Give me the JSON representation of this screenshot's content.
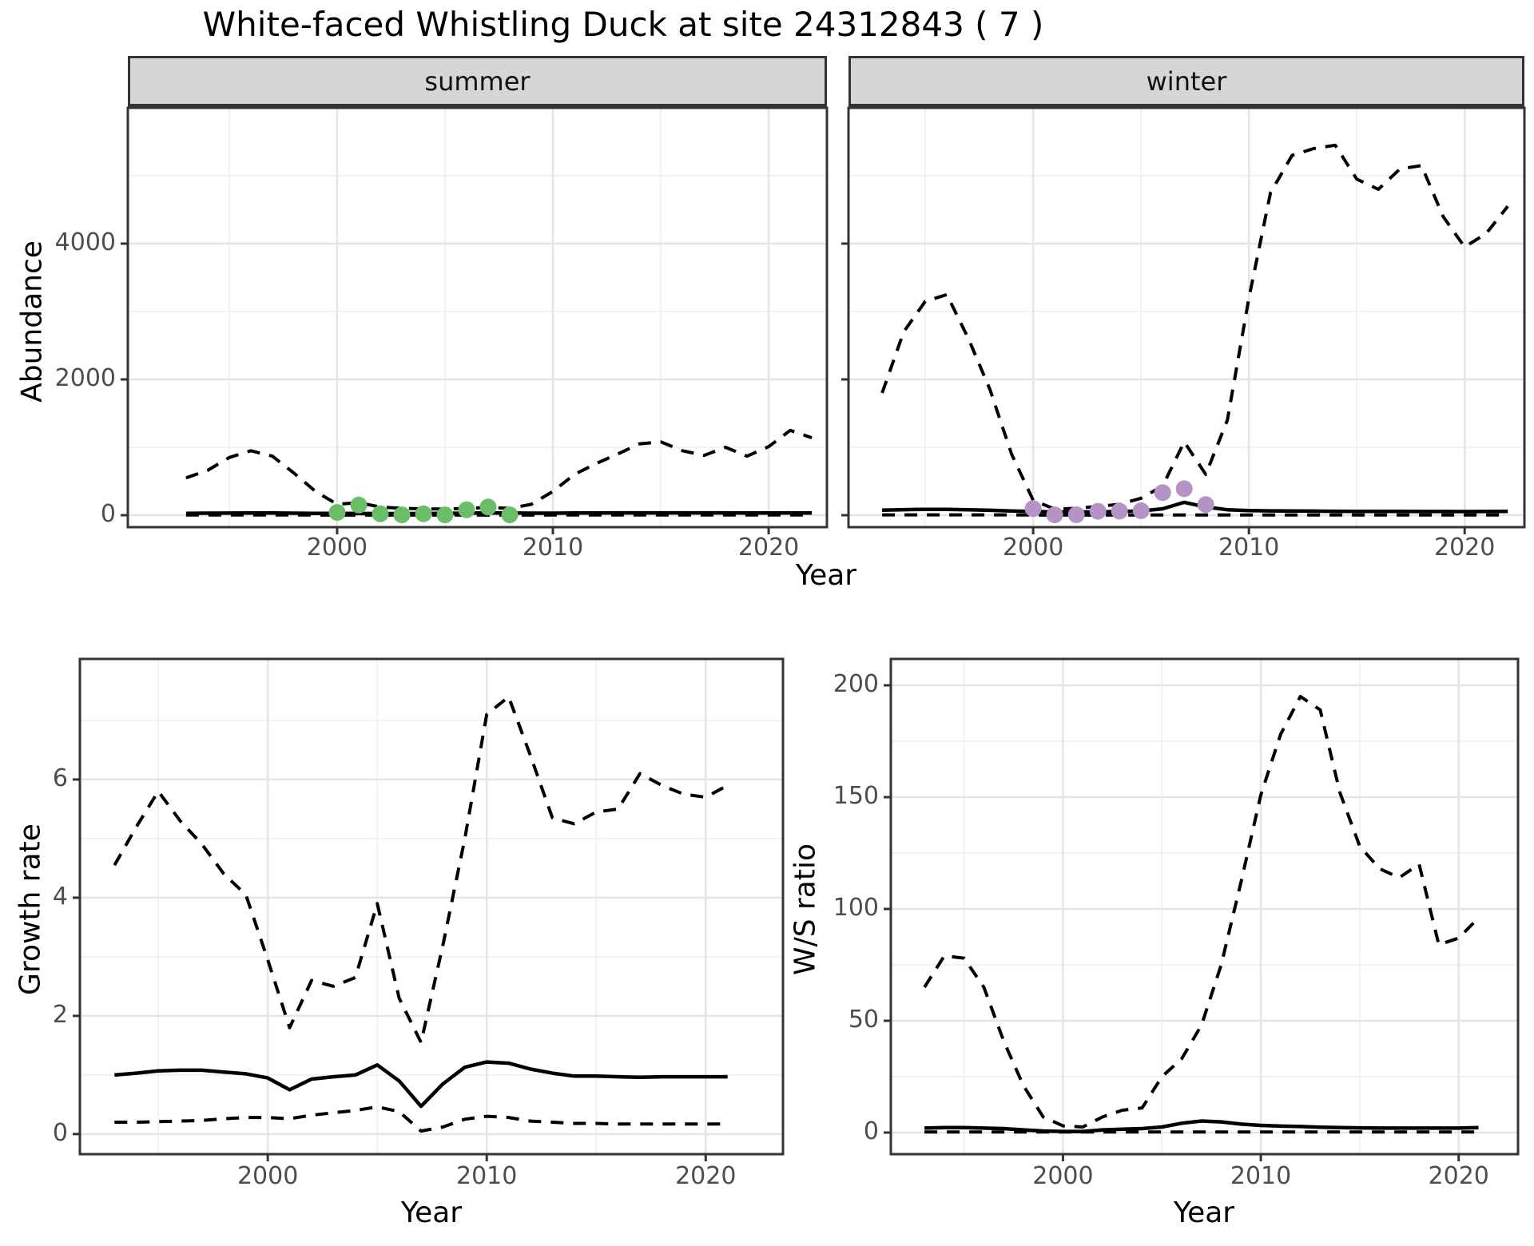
{
  "title": "White-faced Whistling Duck at site 24312843 ( 7 )",
  "colors": {
    "summer_points": "#6abe68",
    "winter_points": "#b593c6",
    "line": "#000000",
    "strip_bg": "#d6d6d6",
    "grid_major": "#e5e5e5",
    "grid_minor": "#f2f2f2",
    "panel_border": "#333333",
    "tick_text": "#4d4d4d"
  },
  "chart_data": [
    {
      "id": "abundance-summer",
      "type": "line",
      "facet_label": "summer",
      "ylabel": "Abundance",
      "xlabel": "Year",
      "legend": "none",
      "grid": "on",
      "xlim": [
        1990.3,
        2022.7
      ],
      "ylim": [
        -176,
        6000
      ],
      "x_ticks": [
        {
          "v": 2000,
          "label": "2000"
        },
        {
          "v": 2010,
          "label": "2010"
        },
        {
          "v": 2020,
          "label": "2020"
        }
      ],
      "x_minor": [
        1995,
        2005,
        2015
      ],
      "y_ticks": [
        {
          "v": 0,
          "label": "0"
        },
        {
          "v": 2000,
          "label": "2000"
        },
        {
          "v": 4000,
          "label": "4000"
        }
      ],
      "y_minor": [
        1000,
        3000,
        5000
      ],
      "years": [
        1993,
        1994,
        1995,
        1996,
        1997,
        1998,
        1999,
        2000,
        2001,
        2002,
        2003,
        2004,
        2005,
        2006,
        2007,
        2008,
        2009,
        2010,
        2011,
        2012,
        2013,
        2014,
        2015,
        2016,
        2017,
        2018,
        2019,
        2020,
        2021,
        2022
      ],
      "series": [
        {
          "name": "upper_95ci",
          "style": "dashed",
          "values": [
            550,
            660,
            850,
            950,
            870,
            620,
            350,
            160,
            185,
            120,
            100,
            95,
            90,
            100,
            115,
            100,
            160,
            350,
            600,
            760,
            900,
            1050,
            1080,
            950,
            880,
            1000,
            870,
            1010,
            1250,
            1140
          ]
        },
        {
          "name": "median",
          "style": "solid",
          "values": [
            28,
            30,
            31,
            32,
            32,
            30,
            28,
            26,
            25,
            24,
            24,
            25,
            26,
            30,
            34,
            32,
            30,
            30,
            32,
            33,
            34,
            35,
            35,
            34,
            34,
            34,
            33,
            33,
            34,
            33
          ]
        },
        {
          "name": "lower_95ci",
          "style": "dashed",
          "values": [
            3,
            3,
            3,
            3,
            3,
            3,
            3,
            2,
            2,
            2,
            2,
            2,
            2,
            2,
            2,
            2,
            2,
            3,
            3,
            3,
            3,
            3,
            3,
            3,
            3,
            3,
            3,
            3,
            3,
            3
          ]
        }
      ],
      "points": {
        "name": "observed-counts-summer",
        "color_key": "summer_points",
        "years": [
          2000,
          2001,
          2002,
          2003,
          2004,
          2005,
          2006,
          2007,
          2008
        ],
        "values": [
          40,
          150,
          20,
          5,
          20,
          5,
          80,
          120,
          5
        ]
      }
    },
    {
      "id": "abundance-winter",
      "type": "line",
      "facet_label": "winter",
      "ylabel": "Abundance",
      "xlabel": "Year",
      "legend": "none",
      "grid": "on",
      "xlim": [
        1991.44,
        2022.77
      ],
      "ylim": [
        -176,
        6000
      ],
      "x_ticks": [
        {
          "v": 2000,
          "label": "2000"
        },
        {
          "v": 2010,
          "label": "2010"
        },
        {
          "v": 2020,
          "label": "2020"
        }
      ],
      "x_minor": [
        1995,
        2005,
        2015
      ],
      "y_ticks": [
        {
          "v": 0,
          "label": "0"
        },
        {
          "v": 2000,
          "label": "2000"
        },
        {
          "v": 4000,
          "label": "4000"
        }
      ],
      "y_minor": [
        1000,
        3000,
        5000
      ],
      "years": [
        1993,
        1994,
        1995,
        1996,
        1997,
        1998,
        1999,
        2000,
        2001,
        2002,
        2003,
        2004,
        2005,
        2006,
        2007,
        2008,
        2009,
        2010,
        2011,
        2012,
        2013,
        2014,
        2015,
        2016,
        2017,
        2018,
        2019,
        2020,
        2021,
        2022
      ],
      "series": [
        {
          "name": "upper_95ci",
          "style": "dashed",
          "values": [
            1800,
            2700,
            3150,
            3250,
            2600,
            1850,
            900,
            220,
            90,
            100,
            130,
            160,
            250,
            430,
            1080,
            600,
            1400,
            3200,
            4750,
            5300,
            5400,
            5450,
            4950,
            4800,
            5100,
            5150,
            4400,
            3950,
            4150,
            4550
          ]
        },
        {
          "name": "median",
          "style": "solid",
          "values": [
            75,
            82,
            86,
            86,
            80,
            72,
            62,
            55,
            48,
            46,
            50,
            55,
            62,
            95,
            190,
            120,
            80,
            68,
            64,
            62,
            60,
            58,
            57,
            56,
            56,
            55,
            54,
            53,
            55,
            56
          ]
        },
        {
          "name": "lower_95ci",
          "style": "dashed",
          "values": [
            5,
            5,
            5,
            5,
            5,
            5,
            4,
            3,
            2,
            2,
            2,
            2,
            3,
            3,
            4,
            3,
            3,
            4,
            4,
            4,
            4,
            4,
            4,
            4,
            4,
            4,
            4,
            4,
            4,
            4
          ]
        }
      ],
      "points": {
        "name": "observed-counts-winter",
        "color_key": "winter_points",
        "years": [
          2000,
          2001,
          2002,
          2003,
          2004,
          2005,
          2006,
          2007,
          2008
        ],
        "values": [
          98,
          5,
          8,
          58,
          60,
          66,
          333,
          390,
          157
        ]
      }
    },
    {
      "id": "growth-rate",
      "type": "line",
      "facet_label": "",
      "ylabel": "Growth rate",
      "xlabel": "Year",
      "legend": "none",
      "grid": "on",
      "xlim": [
        1991.42,
        2023.53
      ],
      "ylim": [
        -0.34,
        8.04
      ],
      "x_ticks": [
        {
          "v": 2000,
          "label": "2000"
        },
        {
          "v": 2010,
          "label": "2010"
        },
        {
          "v": 2020,
          "label": "2020"
        }
      ],
      "x_minor": [
        1995,
        2005,
        2015
      ],
      "y_ticks": [
        {
          "v": 0,
          "label": "0"
        },
        {
          "v": 2,
          "label": "2"
        },
        {
          "v": 4,
          "label": "4"
        },
        {
          "v": 6,
          "label": "6"
        }
      ],
      "y_minor": [
        1,
        3,
        5,
        7
      ],
      "years": [
        1993,
        1994,
        1995,
        1996,
        1997,
        1998,
        1999,
        2000,
        2001,
        2002,
        2003,
        2004,
        2005,
        2006,
        2007,
        2008,
        2009,
        2010,
        2011,
        2012,
        2013,
        2014,
        2015,
        2016,
        2017,
        2018,
        2019,
        2020,
        2021
      ],
      "series": [
        {
          "name": "upper_95ci",
          "style": "dashed",
          "values": [
            4.55,
            5.2,
            5.8,
            5.3,
            4.9,
            4.4,
            4.05,
            2.95,
            1.8,
            2.6,
            2.5,
            2.65,
            3.9,
            2.3,
            1.55,
            3.2,
            5.0,
            7.1,
            7.4,
            6.4,
            5.35,
            5.25,
            5.45,
            5.5,
            6.1,
            5.9,
            5.75,
            5.7,
            5.9
          ]
        },
        {
          "name": "median",
          "style": "solid",
          "values": [
            1.0,
            1.03,
            1.07,
            1.08,
            1.08,
            1.05,
            1.02,
            0.95,
            0.75,
            0.93,
            0.97,
            1.0,
            1.17,
            0.9,
            0.47,
            0.85,
            1.13,
            1.22,
            1.2,
            1.1,
            1.03,
            0.98,
            0.98,
            0.97,
            0.96,
            0.97,
            0.97,
            0.97,
            0.97
          ]
        },
        {
          "name": "lower_95ci",
          "style": "dashed",
          "values": [
            0.2,
            0.2,
            0.21,
            0.22,
            0.23,
            0.26,
            0.28,
            0.28,
            0.26,
            0.32,
            0.36,
            0.4,
            0.46,
            0.38,
            0.05,
            0.12,
            0.25,
            0.3,
            0.28,
            0.22,
            0.2,
            0.18,
            0.18,
            0.17,
            0.17,
            0.17,
            0.17,
            0.17,
            0.17
          ]
        }
      ],
      "points": null
    },
    {
      "id": "ws-ratio",
      "type": "line",
      "facet_label": "",
      "ylabel": "W/S ratio",
      "xlabel": "Year",
      "legend": "none",
      "grid": "on",
      "xlim": [
        1991.3,
        2023.0
      ],
      "ylim": [
        -9.64,
        211.8
      ],
      "x_ticks": [
        {
          "v": 2000,
          "label": "2000"
        },
        {
          "v": 2010,
          "label": "2010"
        },
        {
          "v": 2020,
          "label": "2020"
        }
      ],
      "x_minor": [
        1995,
        2005,
        2015
      ],
      "y_ticks": [
        {
          "v": 0,
          "label": "0"
        },
        {
          "v": 50,
          "label": "50"
        },
        {
          "v": 100,
          "label": "100"
        },
        {
          "v": 150,
          "label": "150"
        },
        {
          "v": 200,
          "label": "200"
        }
      ],
      "y_minor": [
        25,
        75,
        125,
        175
      ],
      "years": [
        1993,
        1994,
        1995,
        1996,
        1997,
        1998,
        1999,
        2000,
        2001,
        2002,
        2003,
        2004,
        2005,
        2006,
        2007,
        2008,
        2009,
        2010,
        2011,
        2012,
        2013,
        2014,
        2015,
        2016,
        2017,
        2018,
        2019,
        2020,
        2021
      ],
      "series": [
        {
          "name": "upper_95ci",
          "style": "dashed",
          "values": [
            65,
            79,
            78,
            65,
            41,
            21,
            7,
            3,
            2.5,
            7,
            10,
            11,
            25,
            33,
            48,
            75,
            112,
            151,
            178,
            195,
            189,
            152,
            128,
            118,
            114,
            120,
            84,
            87,
            96
          ]
        },
        {
          "name": "median",
          "style": "solid",
          "values": [
            2,
            2.2,
            2.2,
            2,
            1.8,
            1.2,
            0.7,
            0.5,
            0.5,
            1.2,
            1.5,
            1.8,
            2.5,
            4.2,
            5.2,
            4.8,
            3.8,
            3.2,
            2.9,
            2.7,
            2.4,
            2.2,
            2.1,
            2,
            2,
            2,
            2,
            2,
            2.2
          ]
        },
        {
          "name": "lower_95ci",
          "style": "dashed",
          "values": [
            0.3,
            0.3,
            0.3,
            0.3,
            0.3,
            0.3,
            0.3,
            0.3,
            0.3,
            0.3,
            0.3,
            0.3,
            0.3,
            0.3,
            0.3,
            0.3,
            0.3,
            0.3,
            0.3,
            0.3,
            0.3,
            0.3,
            0.3,
            0.3,
            0.3,
            0.3,
            0.3,
            0.3,
            0.3
          ]
        }
      ],
      "points": null
    }
  ]
}
